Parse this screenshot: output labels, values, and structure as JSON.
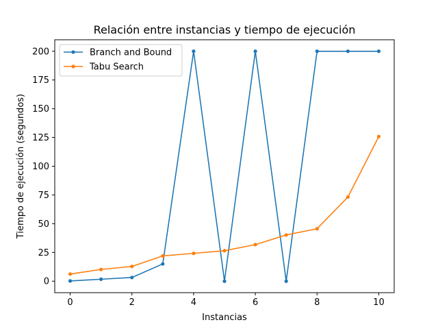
{
  "chart_data": {
    "type": "line",
    "title": "Relación entre instancias y tiempo de ejecución",
    "xlabel": "Instancias",
    "ylabel": "Tiempo de ejecución (segundos)",
    "x": [
      0,
      1,
      2,
      3,
      4,
      5,
      6,
      7,
      8,
      9,
      10
    ],
    "xlim": [
      -0.5,
      10.5
    ],
    "ylim": [
      -10,
      210
    ],
    "xticks": [
      0,
      2,
      4,
      6,
      8,
      10
    ],
    "yticks": [
      0,
      25,
      50,
      75,
      100,
      125,
      150,
      175,
      200
    ],
    "grid": false,
    "legend_position": "top-left",
    "series": [
      {
        "name": "Branch and Bound",
        "color": "#1f77b4",
        "values": [
          0.2,
          1.7,
          3.2,
          15,
          200,
          0,
          200,
          0,
          200,
          200,
          200
        ]
      },
      {
        "name": "Tabu Search",
        "color": "#ff7f0e",
        "values": [
          6.2,
          10.2,
          12.8,
          22,
          24.2,
          26.5,
          31.8,
          40.2,
          45.6,
          73.2,
          125.8
        ]
      }
    ]
  }
}
